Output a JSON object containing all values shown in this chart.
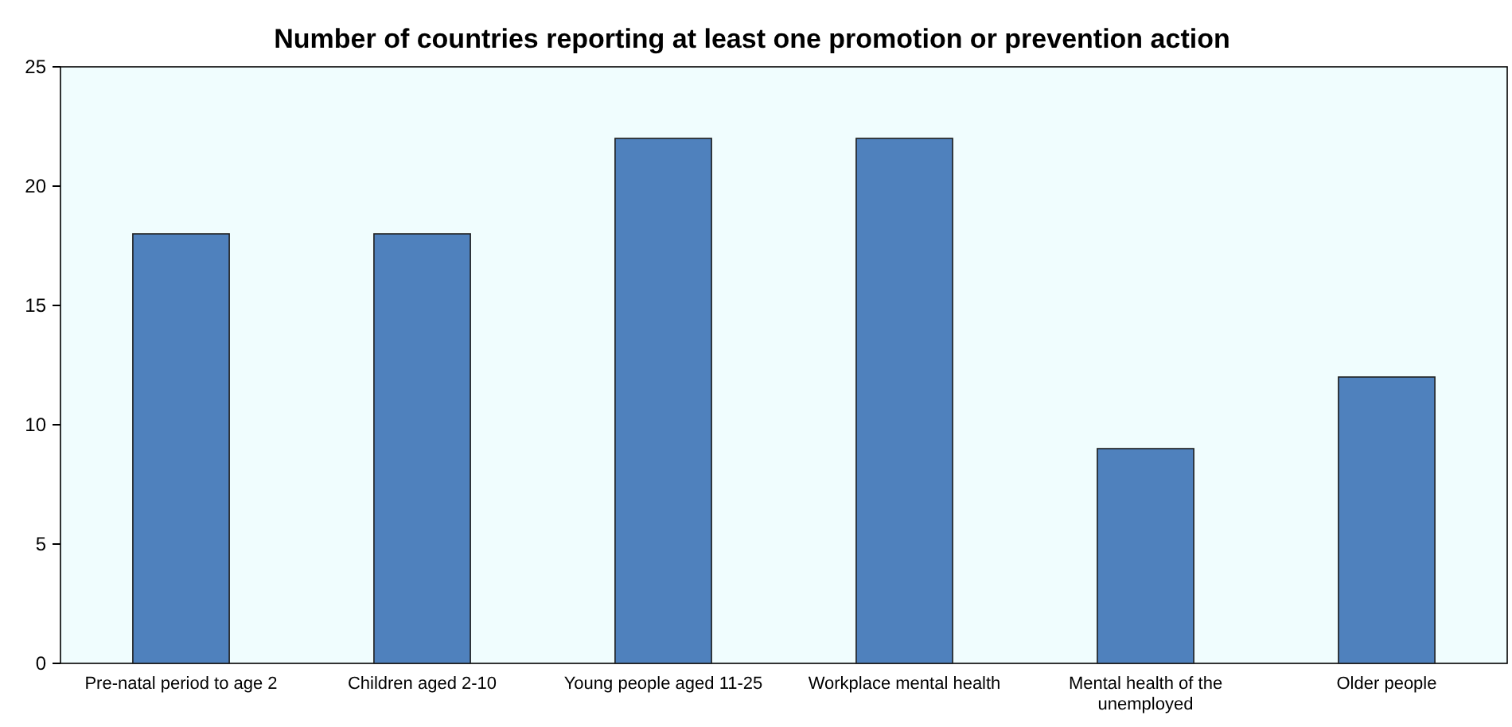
{
  "chart_data": {
    "type": "bar",
    "title": "Number of countries reporting at least one promotion or prevention action",
    "categories": [
      "Pre-natal period to age 2",
      "Children aged 2-10",
      "Young people aged 11-25",
      "Workplace mental health",
      "Mental health of the unemployed",
      "Older people"
    ],
    "values": [
      18,
      18,
      22,
      22,
      9,
      12
    ],
    "color": "#4f81bd",
    "ylim": [
      0,
      25
    ],
    "yticks": [
      0,
      5,
      10,
      15,
      20,
      25
    ],
    "grid": false
  }
}
